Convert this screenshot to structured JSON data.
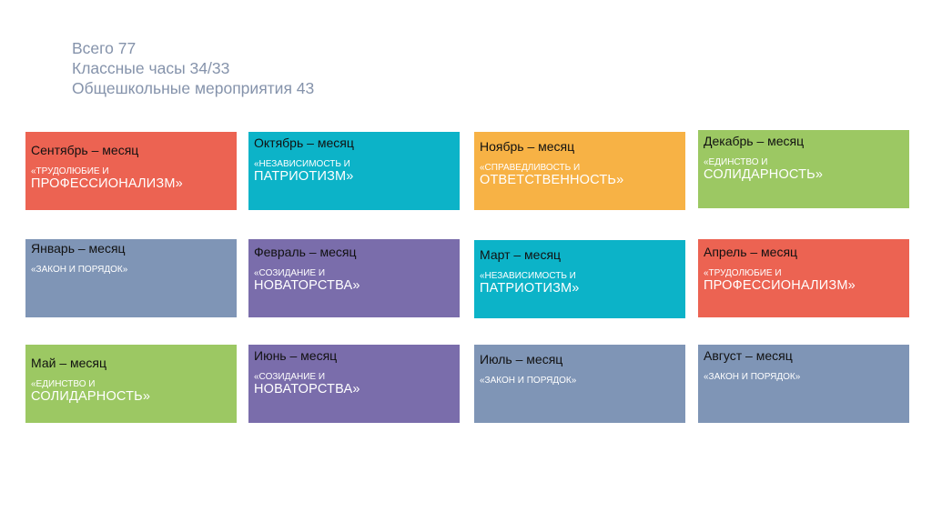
{
  "header": {
    "line1": "Всего 77",
    "line2": "Классные часы 34/33",
    "line3": "Общешкольные мероприятия 43"
  },
  "colors": {
    "red": "#ec6352",
    "teal": "#0cb3c8",
    "orange": "#f7b245",
    "green": "#9cc863",
    "slate": "#7f95b6",
    "purple": "#7a6dab"
  },
  "tiles": [
    {
      "title": "Сентябрь – месяц",
      "small": "«трудолюбие и",
      "big": "ПРОФЕССИОНАЛИЗМ»"
    },
    {
      "title": "Октябрь – месяц",
      "small": "«независимость и",
      "big": "ПАТРИОТИЗМ»"
    },
    {
      "title": "Ноябрь – месяц",
      "small": "«справедливость и",
      "big": "ОТВЕТСТВЕННОСТЬ»"
    },
    {
      "title": "Декабрь – месяц",
      "small": "«единство и",
      "big": "СОЛИДАРНОСТЬ»"
    },
    {
      "title": "Январь – месяц",
      "small": "«закон и порядок»",
      "big": ""
    },
    {
      "title": "Февраль – месяц",
      "small": "«созидание и",
      "big": "НОВАТОРСТВА»"
    },
    {
      "title": "Март – месяц",
      "small": "«независимость и",
      "big": "ПАТРИОТИЗМ»"
    },
    {
      "title": "Апрель – месяц",
      "small": "«трудолюбие и",
      "big": "ПРОФЕССИОНАЛИЗМ»"
    },
    {
      "title": "Май – месяц",
      "small": "«единство и",
      "big": "СОЛИДАРНОСТЬ»"
    },
    {
      "title": "Июнь – месяц",
      "small": "«созидание и",
      "big": "НОВАТОРСТВА»"
    },
    {
      "title": "Июль – месяц",
      "small": "«закон и порядок»",
      "big": ""
    },
    {
      "title": "Август – месяц",
      "small": "«закон и порядок»",
      "big": ""
    }
  ]
}
